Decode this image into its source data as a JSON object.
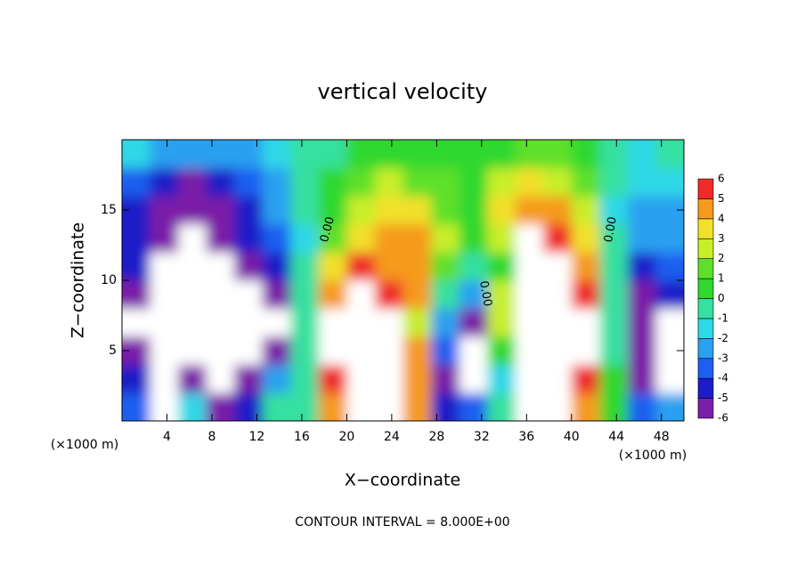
{
  "chart_data": {
    "type": "contour",
    "title": "vertical velocity",
    "x_label": "X−coordinate",
    "y_label": "Z−coordinate",
    "x_unit": "(×1000 m)",
    "x_unit_right": "(×1000 m)",
    "footer": "CONTOUR INTERVAL = 8.000E+00",
    "contour_labels": [
      "0.00",
      "0.00",
      "0.00"
    ],
    "xlim": [
      0,
      50
    ],
    "ylim": [
      0,
      20
    ],
    "xticks": [
      4,
      8,
      12,
      16,
      20,
      24,
      28,
      32,
      36,
      40,
      44,
      48
    ],
    "yticks": [
      5,
      10,
      15
    ],
    "x": [
      1.25,
      3.75,
      6.25,
      8.75,
      11.25,
      13.75,
      16.25,
      18.75,
      21.25,
      23.75,
      26.25,
      28.75,
      31.25,
      33.75,
      36.25,
      38.75,
      41.25,
      43.75,
      46.25,
      48.75
    ],
    "y": [
      1,
      3,
      5,
      7,
      9,
      11,
      13,
      15,
      17,
      19
    ],
    "z": [
      [
        -3,
        -8,
        -1,
        -5,
        -4,
        0,
        0,
        5,
        7,
        8,
        5,
        -4,
        -3,
        0,
        8,
        8,
        5,
        1,
        -3,
        -2
      ],
      [
        -4,
        -8,
        -6,
        -7,
        -5,
        -2,
        0,
        6,
        8,
        8,
        5,
        -5,
        -8,
        -1,
        8,
        8,
        6,
        1,
        -5,
        -7
      ],
      [
        -5,
        -8,
        -8,
        -8,
        -7,
        -5,
        0,
        8,
        8,
        8,
        5,
        -3,
        -8,
        1,
        8,
        8,
        7,
        0,
        -5,
        -8
      ],
      [
        -8,
        -8,
        -8,
        -8,
        -8,
        -7,
        0,
        8,
        8,
        8,
        3,
        -2,
        -5,
        3,
        8,
        8,
        7,
        0,
        -5,
        -8
      ],
      [
        -5,
        -8,
        -8,
        -7,
        -8,
        -6,
        0,
        5,
        7,
        6,
        5,
        0,
        -2,
        3,
        8,
        8,
        6,
        0,
        -5,
        -4
      ],
      [
        -4,
        -7,
        -8,
        -7,
        -5,
        -4,
        0,
        4,
        6,
        5,
        5,
        2,
        0,
        1,
        8,
        7,
        5,
        0,
        -4,
        -3
      ],
      [
        -4,
        -5,
        -8,
        -5,
        -4,
        -3,
        -1,
        2,
        4,
        5,
        5,
        3,
        1,
        3,
        7,
        6,
        4,
        0,
        -2,
        -2
      ],
      [
        -4,
        -5,
        -5,
        -5,
        -4,
        -2,
        0,
        1,
        3,
        4,
        4,
        2,
        1,
        4,
        5,
        5,
        3,
        -1,
        -2,
        -2
      ],
      [
        -3,
        -4,
        -5,
        -4,
        -3,
        -2,
        0,
        1,
        2,
        3,
        2,
        2,
        1,
        3,
        4,
        3,
        2,
        0,
        -1,
        -1
      ],
      [
        -1,
        -2,
        -2,
        -2,
        -2,
        -1,
        0,
        0,
        1,
        1,
        1,
        1,
        1,
        1,
        2,
        2,
        1,
        0,
        -1,
        0
      ]
    ],
    "colorbar": {
      "levels": [
        -6,
        -5,
        -4,
        -3,
        -2,
        -1,
        0,
        1,
        2,
        3,
        4,
        5,
        6
      ],
      "colors": [
        "#7a1fa8",
        "#1c1cc8",
        "#1f5ef0",
        "#2aa0f0",
        "#2fd8e6",
        "#36e0a0",
        "#2ed82e",
        "#5ee02a",
        "#c8ee2a",
        "#f2e02a",
        "#f59a1e",
        "#f02a2a"
      ],
      "extreme_color": "#ffffff"
    }
  }
}
